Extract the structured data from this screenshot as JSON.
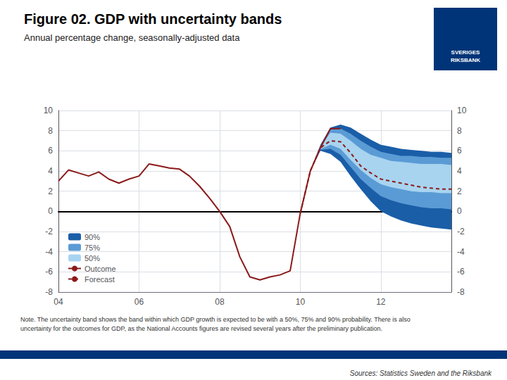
{
  "chart_data": {
    "type": "line",
    "title": "Figure 02. GDP with uncertainty bands",
    "subtitle": "Annual percentage change, seasonally-adjusted data",
    "note": "Note. The uncertainty band shows the band within which GDP growth is expected to be with a 50%, 75% and 90% probability. There is also\nuncertainty for the outcomes for GDP, as the National Accounts figures are revised several years after the preliminary publication.",
    "source": "Sources: Statistics Sweden and the Riksbank",
    "annotations": [
      "SVERIGES\nRIKSBANK"
    ],
    "xlim": [
      2004.0,
      2013.75
    ],
    "xticks": [
      {
        "value": 2004,
        "label": "04"
      },
      {
        "value": 2006,
        "label": "06"
      },
      {
        "value": 2008,
        "label": "08"
      },
      {
        "value": 2010,
        "label": "10"
      },
      {
        "value": 2012,
        "label": "12"
      }
    ],
    "ylim": [
      -8,
      10
    ],
    "yticks": [
      -8,
      -6,
      -4,
      -2,
      0,
      2,
      4,
      6,
      8,
      10
    ],
    "y2lim": [
      -8,
      10
    ],
    "y2ticks": [
      -8,
      -6,
      -4,
      -2,
      0,
      2,
      4,
      6,
      8,
      10
    ],
    "grid": true,
    "legend": "lower left",
    "series": [
      {
        "name": "90%",
        "type": "band",
        "color": "#1A5EA8",
        "x": [
          2010.0,
          2010.25,
          2010.5,
          2010.75,
          2011.0,
          2011.25,
          2011.5,
          2011.75,
          2012.0,
          2012.25,
          2012.5,
          2012.75,
          2013.0,
          2013.25,
          2013.5,
          2013.75
        ],
        "lower": [
          -0.2,
          4.0,
          6.0,
          5.7,
          4.9,
          3.5,
          2.2,
          1.0,
          0.0,
          -0.5,
          -0.9,
          -1.2,
          -1.4,
          -1.6,
          -1.7,
          -1.8
        ],
        "upper": [
          -0.2,
          4.0,
          6.6,
          8.3,
          8.6,
          8.3,
          7.7,
          7.1,
          6.6,
          6.4,
          6.2,
          6.1,
          6.0,
          5.9,
          5.9,
          5.8
        ]
      },
      {
        "name": "75%",
        "type": "band",
        "color": "#5B9BD5",
        "x": [
          2010.0,
          2010.25,
          2010.5,
          2010.75,
          2011.0,
          2011.25,
          2011.5,
          2011.75,
          2012.0,
          2012.25,
          2012.5,
          2012.75,
          2013.0,
          2013.25,
          2013.5,
          2013.75
        ],
        "lower": [
          -0.2,
          4.0,
          6.1,
          6.2,
          5.6,
          4.4,
          3.2,
          2.3,
          1.5,
          1.1,
          0.8,
          0.6,
          0.4,
          0.3,
          0.3,
          0.2
        ],
        "upper": [
          -0.2,
          4.0,
          6.5,
          8.1,
          8.2,
          7.7,
          7.0,
          6.4,
          5.9,
          5.7,
          5.5,
          5.5,
          5.4,
          5.4,
          5.3,
          5.3
        ]
      },
      {
        "name": "50%",
        "type": "band",
        "color": "#A8D4F0",
        "x": [
          2010.0,
          2010.25,
          2010.5,
          2010.75,
          2011.0,
          2011.25,
          2011.5,
          2011.75,
          2012.0,
          2012.25,
          2012.5,
          2012.75,
          2013.0,
          2013.25,
          2013.5,
          2013.75
        ],
        "lower": [
          -0.2,
          4.0,
          6.2,
          6.6,
          6.2,
          5.1,
          4.1,
          3.3,
          2.7,
          2.4,
          2.2,
          2.0,
          1.9,
          1.9,
          1.8,
          1.8
        ],
        "upper": [
          -0.2,
          4.0,
          6.4,
          7.8,
          7.7,
          7.0,
          6.2,
          5.6,
          5.3,
          5.0,
          4.9,
          4.8,
          4.7,
          4.7,
          4.7,
          4.6
        ]
      },
      {
        "name": "Outcome",
        "type": "line",
        "line_style": "solid",
        "color": "#8B1A1A",
        "x": [
          2004.0,
          2004.25,
          2004.5,
          2004.75,
          2005.0,
          2005.25,
          2005.5,
          2005.75,
          2006.0,
          2006.25,
          2006.5,
          2006.75,
          2007.0,
          2007.25,
          2007.5,
          2007.75,
          2008.0,
          2008.25,
          2008.5,
          2008.75,
          2009.0,
          2009.25,
          2009.5,
          2009.75,
          2010.0,
          2010.25,
          2010.5,
          2010.75,
          2011.0
        ],
        "values": [
          3.0,
          4.1,
          3.8,
          3.5,
          3.9,
          3.2,
          2.8,
          3.2,
          3.5,
          4.7,
          4.5,
          4.3,
          4.2,
          3.5,
          2.5,
          1.3,
          0.0,
          -1.5,
          -4.5,
          -6.5,
          -6.8,
          -6.5,
          -6.3,
          -5.9,
          -0.2,
          4.0,
          6.3,
          8.2,
          8.2
        ]
      },
      {
        "name": "Forecast",
        "type": "line",
        "line_style": "dashed",
        "color": "#8B1A1A",
        "x": [
          2010.0,
          2010.25,
          2010.5,
          2010.75,
          2011.0,
          2011.25,
          2011.5,
          2011.75,
          2012.0,
          2012.25,
          2012.5,
          2012.75,
          2013.0,
          2013.25,
          2013.5,
          2013.75
        ],
        "values": [
          -0.2,
          4.0,
          6.3,
          7.0,
          6.9,
          5.8,
          4.5,
          3.8,
          3.2,
          3.0,
          2.8,
          2.6,
          2.4,
          2.3,
          2.2,
          2.2
        ]
      }
    ]
  }
}
